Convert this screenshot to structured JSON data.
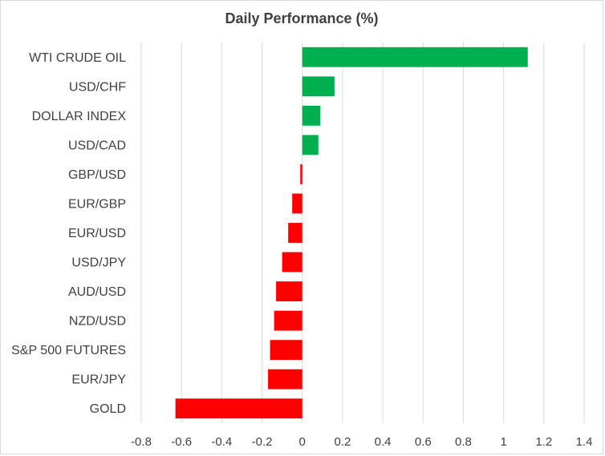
{
  "chart_data": {
    "type": "bar",
    "orientation": "horizontal",
    "title": "Daily Performance (%)",
    "xlabel": "",
    "ylabel": "",
    "xlim": [
      -0.8,
      1.4
    ],
    "x_ticks": [
      "-0.8",
      "-0.6",
      "-0.4",
      "-0.2",
      "0",
      "0.2",
      "0.4",
      "0.6",
      "0.8",
      "1",
      "1.2",
      "1.4"
    ],
    "grid": "vertical",
    "categories": [
      "WTI CRUDE OIL",
      "USD/CHF",
      "DOLLAR INDEX",
      "USD/CAD",
      "GBP/USD",
      "EUR/GBP",
      "EUR/USD",
      "USD/JPY",
      "AUD/USD",
      "NZD/USD",
      "S&P 500 FUTURES",
      "EUR/JPY",
      "GOLD"
    ],
    "values": [
      1.12,
      0.16,
      0.09,
      0.08,
      -0.01,
      -0.05,
      -0.07,
      -0.1,
      -0.13,
      -0.14,
      -0.16,
      -0.17,
      -0.63
    ],
    "colors": {
      "positive": "#00b050",
      "negative": "#ff0000"
    }
  }
}
